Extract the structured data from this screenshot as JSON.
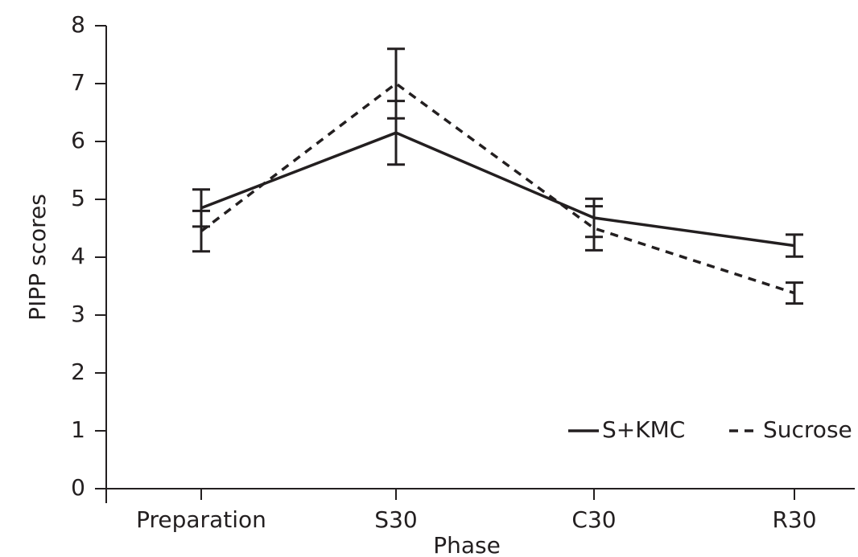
{
  "chart_data": {
    "type": "line",
    "xlabel": "Phase",
    "ylabel": "PIPP scores",
    "categories": [
      "Preparation",
      "S30",
      "C30",
      "R30"
    ],
    "series": [
      {
        "name": "S+KMC",
        "color": "#231f20",
        "line_style": "solid",
        "values": [
          4.85,
          6.15,
          4.68,
          4.2
        ],
        "errors": [
          0.32,
          0.55,
          0.33,
          0.19
        ]
      },
      {
        "name": "Sucrose",
        "color": "#231f20",
        "line_style": "dashed",
        "values": [
          4.45,
          7.0,
          4.5,
          3.38
        ],
        "errors": [
          0.35,
          0.6,
          0.38,
          0.18
        ]
      }
    ],
    "ylim": [
      0,
      8
    ],
    "yticks": [
      0,
      1,
      2,
      3,
      4,
      5,
      6,
      7,
      8
    ],
    "legend": "lower right"
  }
}
